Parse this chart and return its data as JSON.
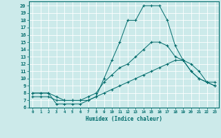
{
  "xlabel": "Humidex (Indice chaleur)",
  "background_color": "#cceaea",
  "grid_color": "#ffffff",
  "line_color": "#006b6b",
  "xlim": [
    -0.5,
    23.5
  ],
  "ylim": [
    6,
    20.6
  ],
  "xticks": [
    0,
    1,
    2,
    3,
    4,
    5,
    6,
    7,
    8,
    9,
    10,
    11,
    12,
    13,
    14,
    15,
    16,
    17,
    18,
    19,
    20,
    21,
    22,
    23
  ],
  "yticks": [
    6,
    7,
    8,
    9,
    10,
    11,
    12,
    13,
    14,
    15,
    16,
    17,
    18,
    19,
    20
  ],
  "line1_x": [
    0,
    1,
    2,
    3,
    4,
    5,
    6,
    7,
    8,
    9,
    10,
    11,
    12,
    13,
    14,
    15,
    16,
    17,
    18,
    19,
    20,
    21,
    22,
    23
  ],
  "line1_y": [
    8.0,
    8.0,
    8.0,
    6.5,
    6.5,
    6.5,
    6.5,
    7.0,
    7.5,
    10.0,
    12.5,
    15.0,
    18.0,
    18.0,
    20.0,
    20.0,
    20.0,
    18.0,
    14.5,
    12.5,
    11.0,
    10.0,
    9.5,
    9.5
  ],
  "line2_x": [
    0,
    1,
    2,
    3,
    4,
    5,
    6,
    7,
    8,
    9,
    10,
    11,
    12,
    13,
    14,
    15,
    16,
    17,
    18,
    19,
    20,
    21,
    22,
    23
  ],
  "line2_y": [
    8.0,
    8.0,
    8.0,
    7.5,
    7.0,
    7.0,
    7.0,
    7.5,
    8.0,
    9.5,
    10.5,
    11.5,
    12.0,
    13.0,
    14.0,
    15.0,
    15.0,
    14.5,
    13.0,
    12.5,
    11.0,
    10.0,
    9.5,
    9.0
  ],
  "line3_x": [
    0,
    1,
    2,
    3,
    4,
    5,
    6,
    7,
    8,
    9,
    10,
    11,
    12,
    13,
    14,
    15,
    16,
    17,
    18,
    19,
    20,
    21,
    22,
    23
  ],
  "line3_y": [
    7.5,
    7.5,
    7.5,
    7.0,
    7.0,
    7.0,
    7.0,
    7.0,
    7.5,
    8.0,
    8.5,
    9.0,
    9.5,
    10.0,
    10.5,
    11.0,
    11.5,
    12.0,
    12.5,
    12.5,
    12.0,
    11.0,
    9.5,
    9.0
  ]
}
